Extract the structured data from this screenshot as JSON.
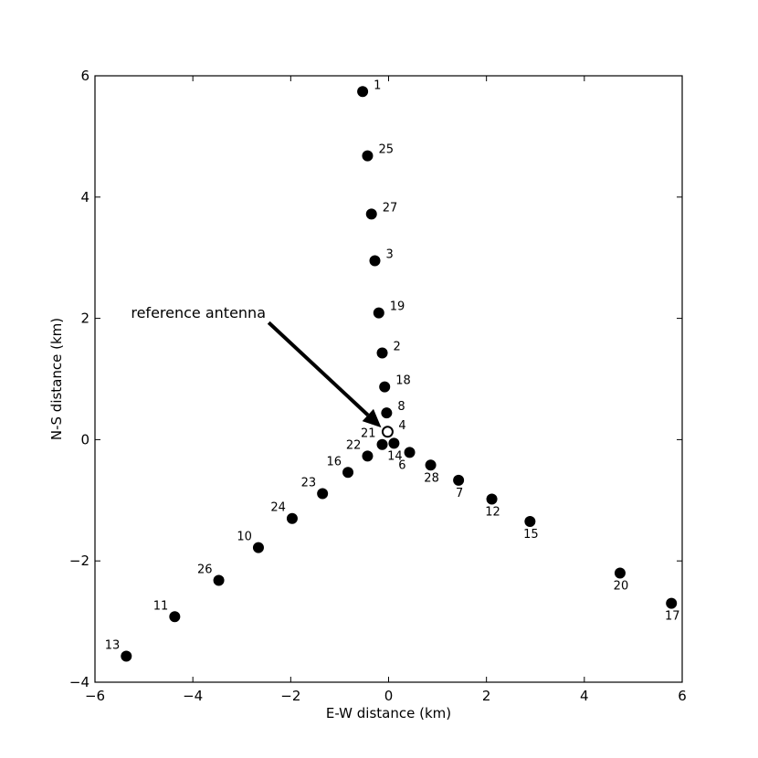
{
  "chart_data": {
    "type": "scatter",
    "title": "",
    "xlabel": "E-W distance (km)",
    "ylabel": "N-S distance (km)",
    "xlim": [
      -6,
      6
    ],
    "ylim": [
      -4,
      6
    ],
    "xticks": [
      -6,
      -4,
      -2,
      0,
      2,
      4,
      6
    ],
    "yticks": [
      -4,
      -2,
      0,
      2,
      4,
      6
    ],
    "xtick_labels": [
      "−6",
      "−4",
      "−2",
      "0",
      "2",
      "4",
      "6"
    ],
    "ytick_labels": [
      "−4",
      "−2",
      "0",
      "2",
      "4",
      "6"
    ],
    "grid": false,
    "points": [
      {
        "label": "1",
        "x": -0.53,
        "y": 5.74,
        "lpos": "r"
      },
      {
        "label": "25",
        "x": -0.43,
        "y": 4.68,
        "lpos": "r"
      },
      {
        "label": "27",
        "x": -0.35,
        "y": 3.72,
        "lpos": "r"
      },
      {
        "label": "3",
        "x": -0.28,
        "y": 2.95,
        "lpos": "r"
      },
      {
        "label": "19",
        "x": -0.2,
        "y": 2.09,
        "lpos": "r"
      },
      {
        "label": "2",
        "x": -0.13,
        "y": 1.43,
        "lpos": "r"
      },
      {
        "label": "18",
        "x": -0.08,
        "y": 0.87,
        "lpos": "r"
      },
      {
        "label": "8",
        "x": -0.04,
        "y": 0.44,
        "lpos": "r"
      },
      {
        "label": "4",
        "x": -0.02,
        "y": 0.13,
        "lpos": "r",
        "hollow": true
      },
      {
        "label": "21",
        "x": -0.13,
        "y": -0.08,
        "lpos": "ul"
      },
      {
        "label": "22",
        "x": -0.43,
        "y": -0.27,
        "lpos": "ul"
      },
      {
        "label": "14",
        "x": 0.11,
        "y": -0.06,
        "lpos": "b"
      },
      {
        "label": "6",
        "x": 0.43,
        "y": -0.21,
        "lpos": "bl"
      },
      {
        "label": "16",
        "x": -0.83,
        "y": -0.54,
        "lpos": "ul"
      },
      {
        "label": "28",
        "x": 0.86,
        "y": -0.42,
        "lpos": "b"
      },
      {
        "label": "23",
        "x": -1.35,
        "y": -0.89,
        "lpos": "ul"
      },
      {
        "label": "7",
        "x": 1.43,
        "y": -0.67,
        "lpos": "b"
      },
      {
        "label": "24",
        "x": -1.97,
        "y": -1.3,
        "lpos": "ul"
      },
      {
        "label": "12",
        "x": 2.11,
        "y": -0.98,
        "lpos": "b"
      },
      {
        "label": "10",
        "x": -2.66,
        "y": -1.78,
        "lpos": "ul"
      },
      {
        "label": "15",
        "x": 2.89,
        "y": -1.35,
        "lpos": "b"
      },
      {
        "label": "26",
        "x": -3.47,
        "y": -2.32,
        "lpos": "ul"
      },
      {
        "label": "11",
        "x": -4.37,
        "y": -2.92,
        "lpos": "ul"
      },
      {
        "label": "20",
        "x": 4.73,
        "y": -2.2,
        "lpos": "b"
      },
      {
        "label": "13",
        "x": -5.36,
        "y": -3.57,
        "lpos": "ul"
      },
      {
        "label": "17",
        "x": 5.78,
        "y": -2.7,
        "lpos": "b"
      }
    ],
    "annotation": {
      "text": "reference antenna",
      "arrow_from": [
        -2.45,
        1.93
      ],
      "arrow_to": [
        -0.15,
        0.2
      ]
    }
  }
}
